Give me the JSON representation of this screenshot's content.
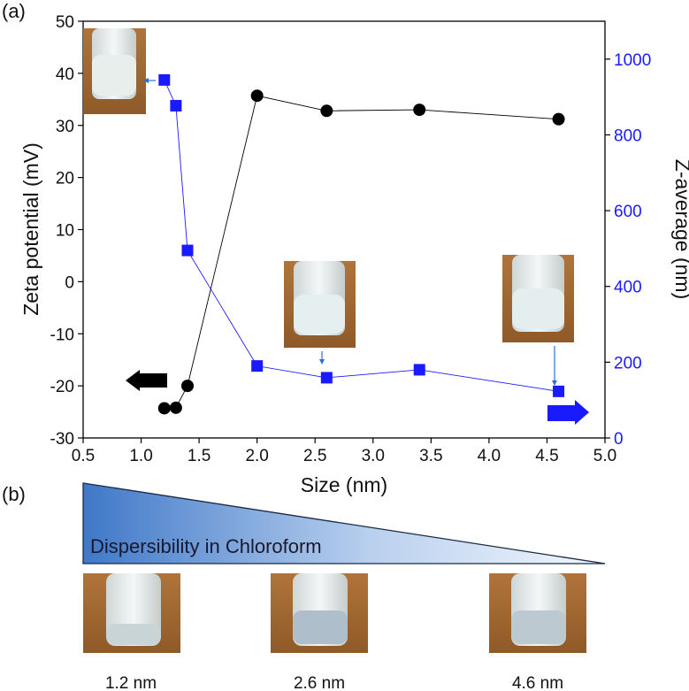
{
  "panel_labels": {
    "a": "(a)",
    "b": "(b)"
  },
  "colors": {
    "zeta_series": "#000000",
    "zaverage_series": "#1a1aff",
    "right_axis": "#1a1aff",
    "triangle": "#3a74c4"
  },
  "chart_data": {
    "type": "scatter",
    "xlabel": "Size (nm)",
    "ylabel": "Zeta potential (mV)",
    "y2label": "Z-average (nm)",
    "xlim": [
      0.5,
      5.0
    ],
    "ylim": [
      -30,
      50
    ],
    "y2lim": [
      0,
      1100
    ],
    "xticks": [
      "0.5",
      "1.0",
      "1.5",
      "2.0",
      "2.5",
      "3.0",
      "3.5",
      "4.0",
      "4.5",
      "5.0"
    ],
    "yticks": [
      "-30",
      "-20",
      "-10",
      "0",
      "10",
      "20",
      "30",
      "40",
      "50"
    ],
    "y2ticks": [
      "0",
      "200",
      "400",
      "600",
      "800",
      "1000"
    ],
    "series": [
      {
        "name": "Zeta potential",
        "axis": "left",
        "marker": "circle",
        "color": "#000000",
        "x": [
          1.2,
          1.3,
          1.4,
          2.0,
          2.6,
          3.4,
          4.6
        ],
        "y": [
          -24.3,
          -24.2,
          -20.0,
          35.7,
          32.8,
          33.0,
          31.2
        ]
      },
      {
        "name": "Z-average",
        "axis": "right",
        "marker": "square",
        "color": "#1a1aff",
        "x": [
          1.2,
          1.3,
          1.4,
          2.0,
          2.6,
          3.4,
          4.6
        ],
        "y": [
          945,
          877,
          495,
          190,
          159,
          180,
          123
        ]
      }
    ],
    "annotations": [
      "left arrow (black) -> Zeta potential axis",
      "right arrow (blue) -> Z-average axis"
    ]
  },
  "dispersibility": {
    "label": "Dispersibility in Chloroform"
  },
  "vials": [
    {
      "label": "1.2 nm"
    },
    {
      "label": "2.6 nm"
    },
    {
      "label": "4.6 nm"
    }
  ]
}
